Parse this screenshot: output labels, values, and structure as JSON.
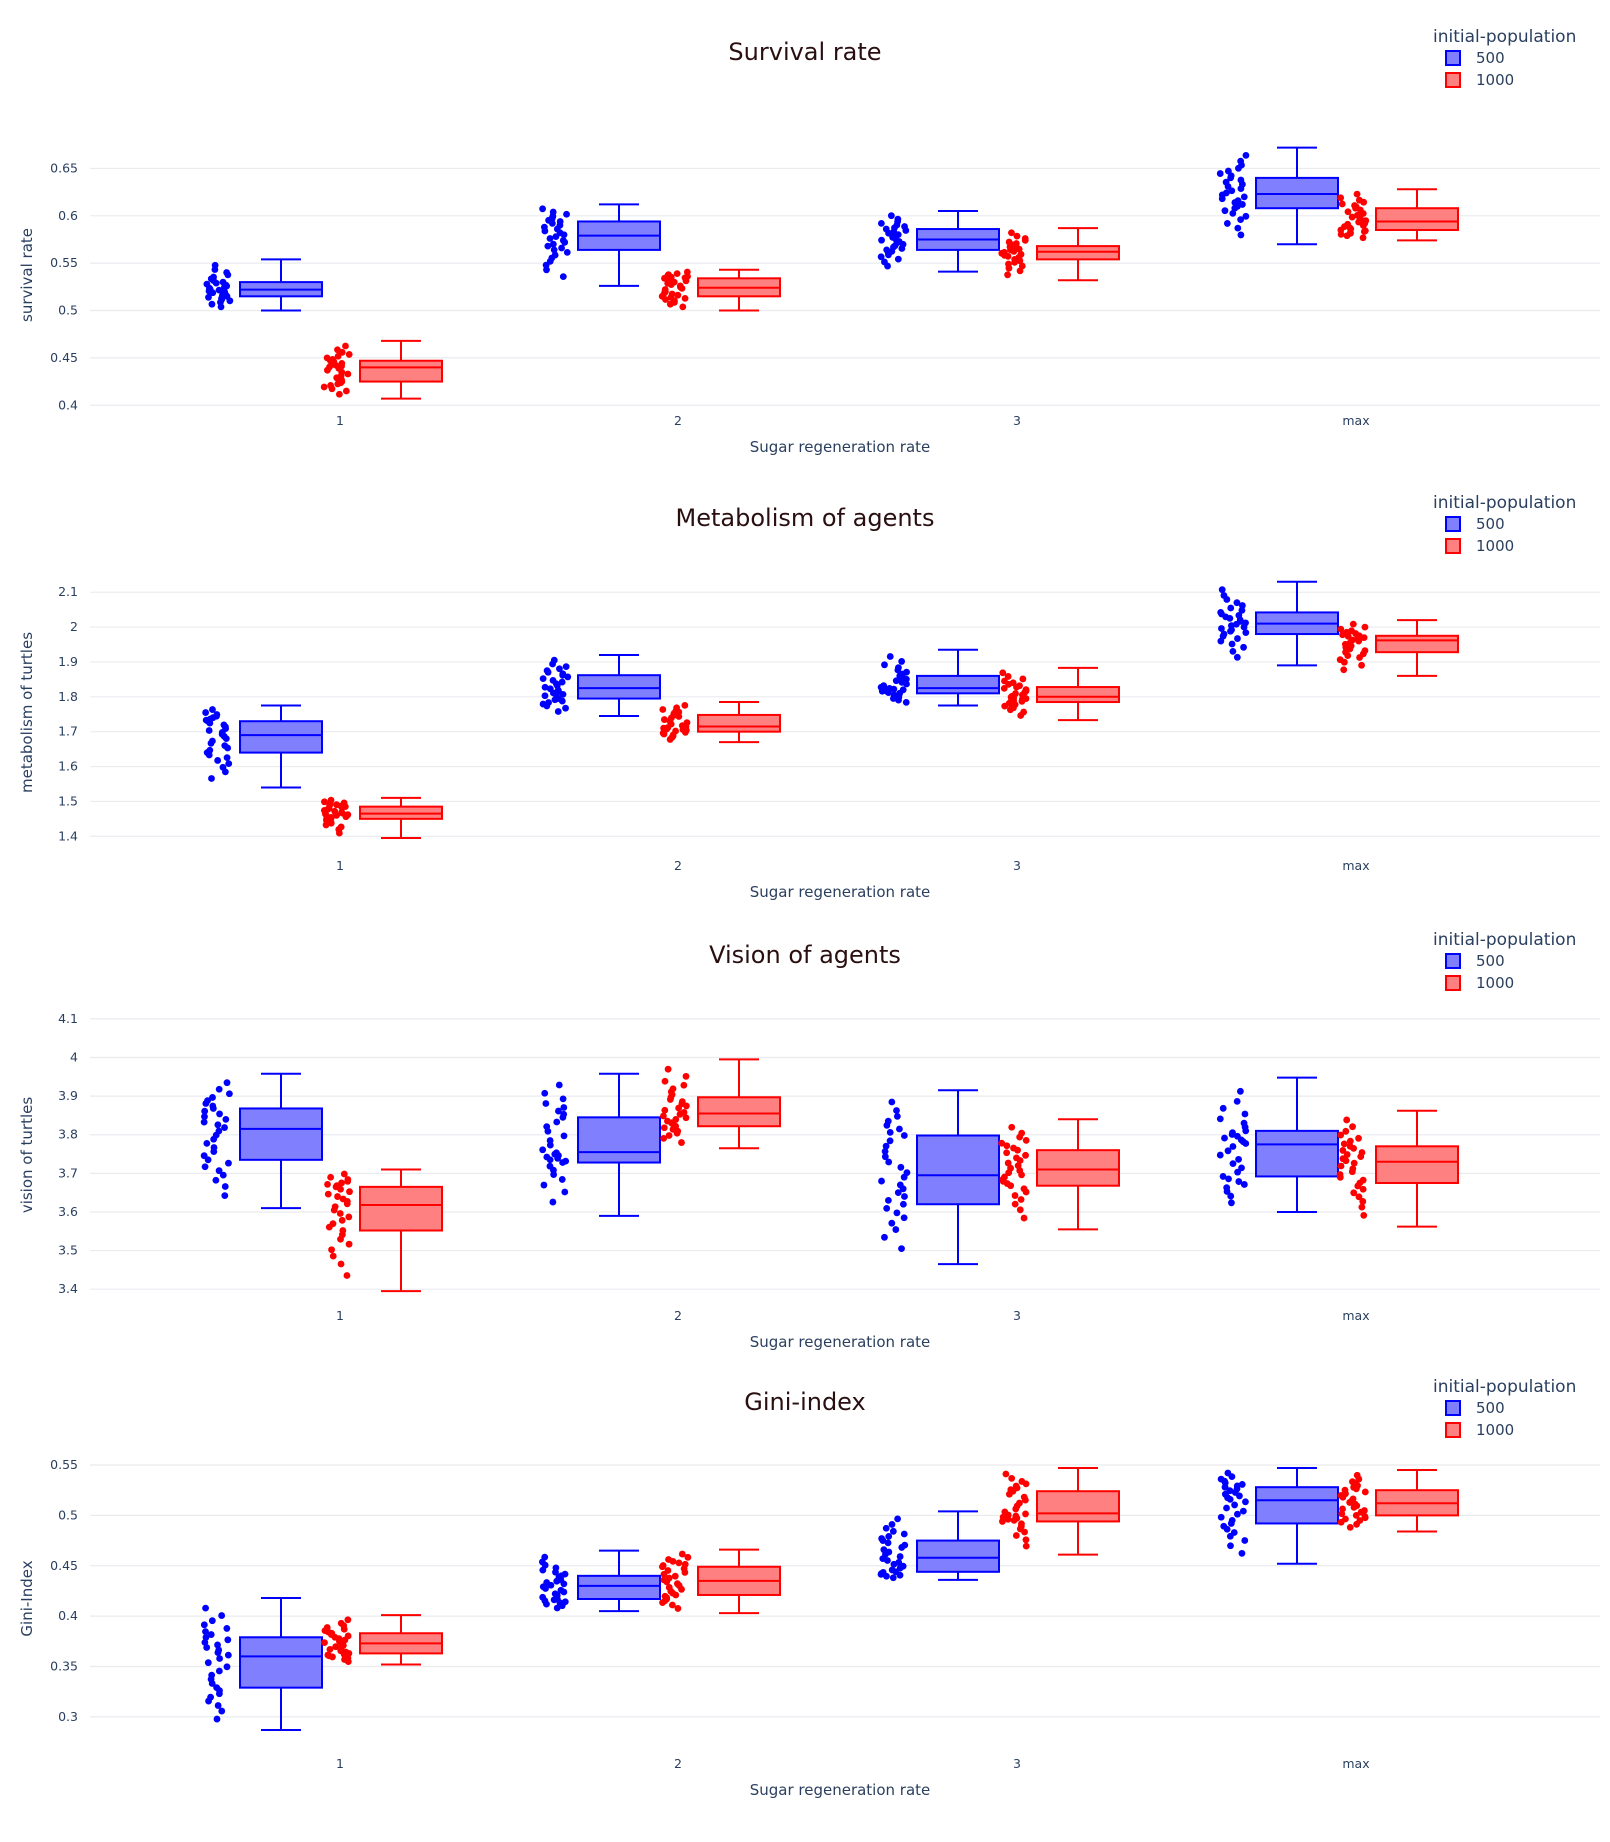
{
  "colors": {
    "series_500_line": "#0000ff",
    "series_500_fill": "#8080ff",
    "series_1000_line": "#ff0000",
    "series_1000_fill": "#ff8080",
    "grid": "#e9ebef",
    "title": "#2a0f10",
    "axis_text": "#2a3f5f"
  },
  "chart_data": [
    {
      "type": "box",
      "title": "Survival rate",
      "xlabel": "Sugar regeneration rate",
      "ylabel": "survival rate",
      "categories": [
        "1",
        "2",
        "3",
        "max"
      ],
      "ylim": [
        0.395,
        0.68
      ],
      "yticks": [
        {
          "value": 0.4,
          "label": "0.4"
        },
        {
          "value": 0.45,
          "label": "0.45"
        },
        {
          "value": 0.5,
          "label": "0.5"
        },
        {
          "value": 0.55,
          "label": "0.55"
        },
        {
          "value": 0.6,
          "label": "0.6"
        },
        {
          "value": 0.65,
          "label": "0.65"
        }
      ],
      "legend": {
        "title": "initial-population",
        "position": "top-right"
      },
      "series": [
        {
          "name": "500",
          "boxes": [
            {
              "min": 0.5,
              "q1": 0.515,
              "median": 0.522,
              "q3": 0.53,
              "max": 0.554
            },
            {
              "min": 0.526,
              "q1": 0.564,
              "median": 0.579,
              "q3": 0.594,
              "max": 0.612
            },
            {
              "min": 0.541,
              "q1": 0.564,
              "median": 0.575,
              "q3": 0.586,
              "max": 0.605
            },
            {
              "min": 0.57,
              "q1": 0.608,
              "median": 0.623,
              "q3": 0.64,
              "max": 0.672
            }
          ]
        },
        {
          "name": "1000",
          "boxes": [
            {
              "min": 0.407,
              "q1": 0.425,
              "median": 0.44,
              "q3": 0.447,
              "max": 0.468
            },
            {
              "min": 0.5,
              "q1": 0.515,
              "median": 0.524,
              "q3": 0.534,
              "max": 0.543
            },
            {
              "min": 0.532,
              "q1": 0.554,
              "median": 0.562,
              "q3": 0.568,
              "max": 0.587
            },
            {
              "min": 0.574,
              "q1": 0.585,
              "median": 0.594,
              "q3": 0.608,
              "max": 0.628
            }
          ]
        }
      ]
    },
    {
      "type": "box",
      "title": "Metabolism of agents",
      "xlabel": "Sugar regeneration rate",
      "ylabel": "metabolism of turtles",
      "categories": [
        "1",
        "2",
        "3",
        "max"
      ],
      "ylim": [
        1.375,
        2.135
      ],
      "yticks": [
        {
          "value": 1.4,
          "label": "1.4"
        },
        {
          "value": 1.5,
          "label": "1.5"
        },
        {
          "value": 1.6,
          "label": "1.6"
        },
        {
          "value": 1.7,
          "label": "1.7"
        },
        {
          "value": 1.8,
          "label": "1.8"
        },
        {
          "value": 1.9,
          "label": "1.9"
        },
        {
          "value": 2.0,
          "label": "2"
        },
        {
          "value": 2.1,
          "label": "2.1"
        }
      ],
      "legend": {
        "title": "initial-population",
        "position": "top-right"
      },
      "series": [
        {
          "name": "500",
          "boxes": [
            {
              "min": 1.54,
              "q1": 1.64,
              "median": 1.69,
              "q3": 1.73,
              "max": 1.775
            },
            {
              "min": 1.745,
              "q1": 1.795,
              "median": 1.825,
              "q3": 1.862,
              "max": 1.92
            },
            {
              "min": 1.775,
              "q1": 1.81,
              "median": 1.825,
              "q3": 1.86,
              "max": 1.935
            },
            {
              "min": 1.89,
              "q1": 1.98,
              "median": 2.01,
              "q3": 2.042,
              "max": 2.13
            }
          ]
        },
        {
          "name": "1000",
          "boxes": [
            {
              "min": 1.395,
              "q1": 1.45,
              "median": 1.465,
              "q3": 1.485,
              "max": 1.51
            },
            {
              "min": 1.67,
              "q1": 1.7,
              "median": 1.715,
              "q3": 1.748,
              "max": 1.785
            },
            {
              "min": 1.733,
              "q1": 1.785,
              "median": 1.8,
              "q3": 1.828,
              "max": 1.883
            },
            {
              "min": 1.86,
              "q1": 1.928,
              "median": 1.962,
              "q3": 1.975,
              "max": 2.02
            }
          ]
        }
      ]
    },
    {
      "type": "box",
      "title": "Vision of agents",
      "xlabel": "Sugar regeneration rate",
      "ylabel": "vision of turtles",
      "categories": [
        "1",
        "2",
        "3",
        "max"
      ],
      "ylim": [
        3.385,
        4.11
      ],
      "yticks": [
        {
          "value": 3.4,
          "label": "3.4"
        },
        {
          "value": 3.5,
          "label": "3.5"
        },
        {
          "value": 3.6,
          "label": "3.6"
        },
        {
          "value": 3.7,
          "label": "3.7"
        },
        {
          "value": 3.8,
          "label": "3.8"
        },
        {
          "value": 3.9,
          "label": "3.9"
        },
        {
          "value": 4.0,
          "label": "4"
        },
        {
          "value": 4.1,
          "label": "4.1"
        }
      ],
      "legend": {
        "title": "initial-population",
        "position": "top-right"
      },
      "series": [
        {
          "name": "500",
          "boxes": [
            {
              "min": 3.61,
              "q1": 3.735,
              "median": 3.815,
              "q3": 3.868,
              "max": 3.958
            },
            {
              "min": 3.59,
              "q1": 3.728,
              "median": 3.755,
              "q3": 3.845,
              "max": 3.958
            },
            {
              "min": 3.465,
              "q1": 3.62,
              "median": 3.695,
              "q3": 3.798,
              "max": 3.915
            },
            {
              "min": 3.6,
              "q1": 3.692,
              "median": 3.775,
              "q3": 3.81,
              "max": 3.948
            }
          ]
        },
        {
          "name": "1000",
          "boxes": [
            {
              "min": 3.395,
              "q1": 3.552,
              "median": 3.618,
              "q3": 3.665,
              "max": 3.71
            },
            {
              "min": 3.765,
              "q1": 3.822,
              "median": 3.855,
              "q3": 3.897,
              "max": 3.995
            },
            {
              "min": 3.555,
              "q1": 3.668,
              "median": 3.71,
              "q3": 3.76,
              "max": 3.84
            },
            {
              "min": 3.562,
              "q1": 3.675,
              "median": 3.73,
              "q3": 3.77,
              "max": 3.862
            }
          ]
        }
      ]
    },
    {
      "type": "box",
      "title": "Gini-index",
      "xlabel": "Sugar regeneration rate",
      "ylabel": "Gini-Index",
      "categories": [
        "1",
        "2",
        "3",
        "max"
      ],
      "ylim": [
        0.282,
        0.553
      ],
      "yticks": [
        {
          "value": 0.3,
          "label": "0.3"
        },
        {
          "value": 0.35,
          "label": "0.35"
        },
        {
          "value": 0.4,
          "label": "0.4"
        },
        {
          "value": 0.45,
          "label": "0.45"
        },
        {
          "value": 0.5,
          "label": "0.5"
        },
        {
          "value": 0.55,
          "label": "0.55"
        }
      ],
      "legend": {
        "title": "initial-population",
        "position": "top-right"
      },
      "series": [
        {
          "name": "500",
          "boxes": [
            {
              "min": 0.287,
              "q1": 0.329,
              "median": 0.36,
              "q3": 0.379,
              "max": 0.418
            },
            {
              "min": 0.405,
              "q1": 0.417,
              "median": 0.43,
              "q3": 0.44,
              "max": 0.465
            },
            {
              "min": 0.436,
              "q1": 0.444,
              "median": 0.458,
              "q3": 0.475,
              "max": 0.504
            },
            {
              "min": 0.452,
              "q1": 0.492,
              "median": 0.515,
              "q3": 0.528,
              "max": 0.547
            }
          ]
        },
        {
          "name": "1000",
          "boxes": [
            {
              "min": 0.352,
              "q1": 0.363,
              "median": 0.373,
              "q3": 0.383,
              "max": 0.401
            },
            {
              "min": 0.403,
              "q1": 0.421,
              "median": 0.435,
              "q3": 0.449,
              "max": 0.466
            },
            {
              "min": 0.461,
              "q1": 0.494,
              "median": 0.502,
              "q3": 0.524,
              "max": 0.547
            },
            {
              "min": 0.484,
              "q1": 0.5,
              "median": 0.512,
              "q3": 0.525,
              "max": 0.545
            }
          ]
        }
      ]
    }
  ]
}
